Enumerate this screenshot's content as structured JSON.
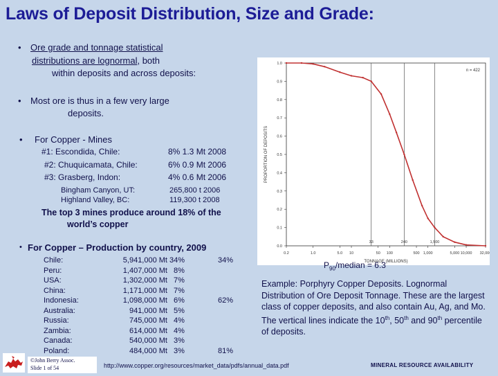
{
  "title": "Laws of Deposit Distribution, Size and Grade:",
  "bullets": {
    "b1_line1": "Ore grade and tonnage statistical",
    "b1_line2": "distributions are lognormal",
    "b1_line2_rest": ", both",
    "b1_line3": "within deposits and across deposits:",
    "b2_line1": "Most ore is thus in a few very large",
    "b2_line2": "deposits.",
    "b3_line1": "For Copper - Mines"
  },
  "mines": [
    {
      "label": "#1: Escondida, Chile:",
      "value": "8% 1.3 Mt 2008"
    },
    {
      "label": "#2: Chuquicamata, Chile:",
      "value": "6%  0.9 Mt 2006"
    },
    {
      "label": "#3: Grasberg, Indon:",
      "value": "4%  0.6 Mt 2006"
    }
  ],
  "other_mines": [
    {
      "label": "Bingham Canyon, UT:",
      "value": "265,800 t 2006"
    },
    {
      "label": "Highland Valley,   BC:",
      "value": "119,300 t 2008"
    }
  ],
  "top3_line1": "The top 3 mines produce around 18% of the",
  "top3_line2": "world’s copper",
  "production": {
    "heading": "For Copper – Production by country, 2009",
    "rows": [
      {
        "country": "Chile:",
        "amount": "5,941,000 Mt",
        "pct": "34%",
        "cum": "34%"
      },
      {
        "country": "Peru:",
        "amount": "1,407,000 Mt",
        "pct": "8%",
        "cum": ""
      },
      {
        "country": "USA:",
        "amount": "1,302,000 Mt",
        "pct": "7%",
        "cum": ""
      },
      {
        "country": "China:",
        "amount": "1,171,000 Mt",
        "pct": "7%",
        "cum": ""
      },
      {
        "country": "Indonesia:",
        "amount": "1,098,000 Mt",
        "pct": "6%",
        "cum": "62%"
      },
      {
        "country": "Australia:",
        "amount": "941,000 Mt",
        "pct": "5%",
        "cum": ""
      },
      {
        "country": "Russia:",
        "amount": "745,000 Mt",
        "pct": "4%",
        "cum": ""
      },
      {
        "country": "Zambia:",
        "amount": "614,000 Mt",
        "pct": "4%",
        "cum": ""
      },
      {
        "country": "Canada:",
        "amount": "540,000 Mt",
        "pct": "3%",
        "cum": ""
      },
      {
        "country": "Poland:",
        "amount": "484,000 Mt",
        "pct": "3%",
        "cum": "81%"
      }
    ]
  },
  "chart": {
    "n_label": "n = 422",
    "ylabel": "PROPORTION OF DEPOSITS",
    "xlabel": "TONNAGE (MILLIONS)",
    "y_ticks": [
      "0.0",
      "0.1",
      "0.2",
      "0.3",
      "0.4",
      "0.5",
      "0.6",
      "0.7",
      "0.8",
      "0.9",
      "1.0"
    ],
    "x_ticks": [
      "0.2",
      "1.0",
      "5.0",
      "10",
      "50",
      "100",
      "500",
      "1,000",
      "5,000",
      "10,000",
      "32,000"
    ],
    "vlines": [
      "33",
      "240",
      "1,500"
    ]
  },
  "chart_data": {
    "type": "line",
    "x": [
      0.2,
      0.5,
      1,
      2,
      5,
      10,
      20,
      33,
      60,
      100,
      150,
      240,
      400,
      700,
      1000,
      1500,
      2500,
      5000,
      10000,
      32000
    ],
    "y": [
      1.0,
      1.0,
      0.995,
      0.98,
      0.95,
      0.93,
      0.92,
      0.9,
      0.83,
      0.72,
      0.62,
      0.5,
      0.36,
      0.22,
      0.15,
      0.1,
      0.05,
      0.02,
      0.005,
      0.0
    ],
    "xlabel": "TONNAGE (MILLIONS)",
    "ylabel": "PROPORTION OF DEPOSITS",
    "xscale": "log",
    "xlim": [
      0.2,
      32000
    ],
    "ylim": [
      0,
      1
    ],
    "vertical_lines": [
      33,
      240,
      1500
    ],
    "grid": false
  },
  "p90_pre": "P",
  "p90_sub": "90",
  "p90_post": "/median = 6.3",
  "caption": {
    "part1": "Example:  Porphyry Copper Deposits. Lognormal Distribution of Ore Deposit Tonnage. These are the largest class of copper deposits, and also contain Au, Ag, and Mo.  The vertical lines indicate the 10",
    "sup1": "th",
    "part2": ", 50",
    "sup2": "th",
    "part3": " and 90",
    "sup3": "th",
    "part4": " percentile of deposits."
  },
  "copyright_line1": "©John Berry Assoc.",
  "copyright_line2": "Slide 1 of 54",
  "footer_url": "http://www.copper.org/resources/market_data/pdfs/annual_data.pdf",
  "footer_right": "MINERAL RESOURCE AVAILABILITY",
  "colors": {
    "title": "#1c1c96",
    "background": "#c6d6ea",
    "curve": "#c03030"
  }
}
